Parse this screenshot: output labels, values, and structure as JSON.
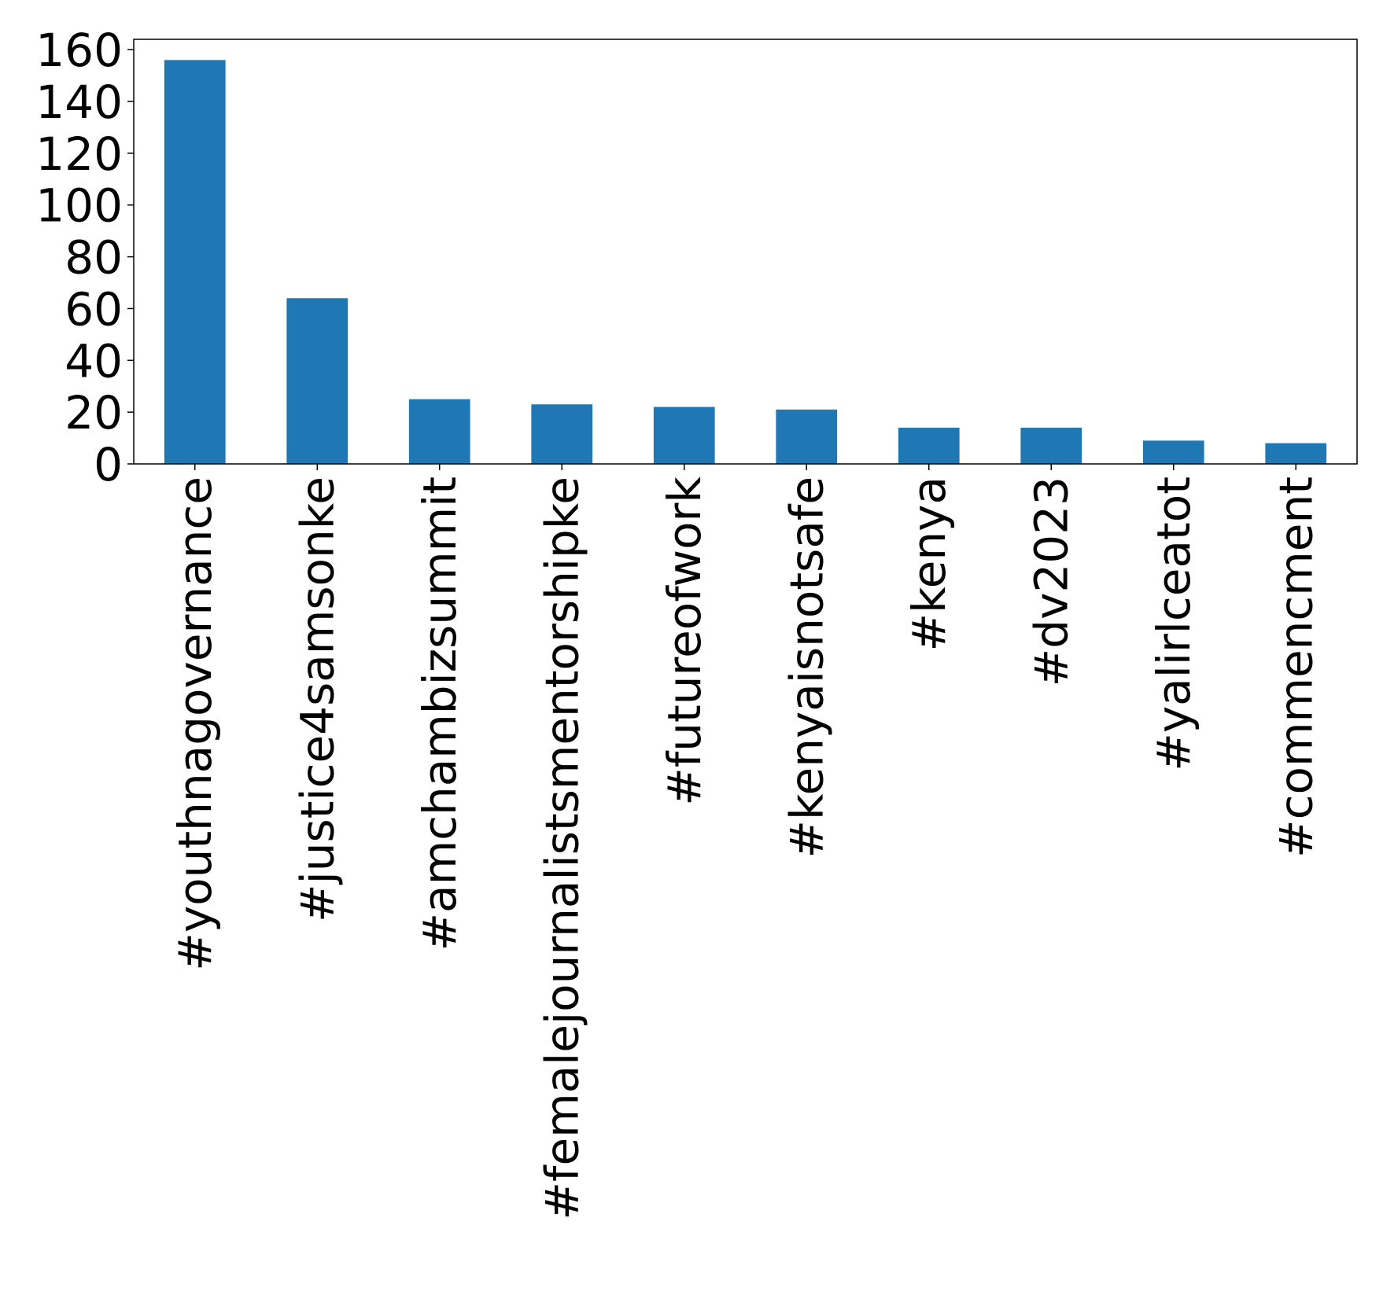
{
  "chart_data": {
    "type": "bar",
    "title": "",
    "xlabel": "",
    "ylabel": "",
    "categories": [
      "#youthnagovernance",
      "#justice4samsonke",
      "#amchambizsummit",
      "#femalejournalistsmentorshipke",
      "#futureofwork",
      "#kenyaisnotsafe",
      "#kenya",
      "#dv2023",
      "#yalirlceatot",
      "#commencment"
    ],
    "values": [
      156,
      64,
      25,
      23,
      22,
      21,
      14,
      14,
      9,
      8
    ],
    "ylim": [
      0,
      164
    ],
    "yticks": [
      0,
      20,
      40,
      60,
      80,
      100,
      120,
      140,
      160
    ],
    "bar_color": "#1f77b4",
    "grid": false,
    "legend": "none"
  }
}
